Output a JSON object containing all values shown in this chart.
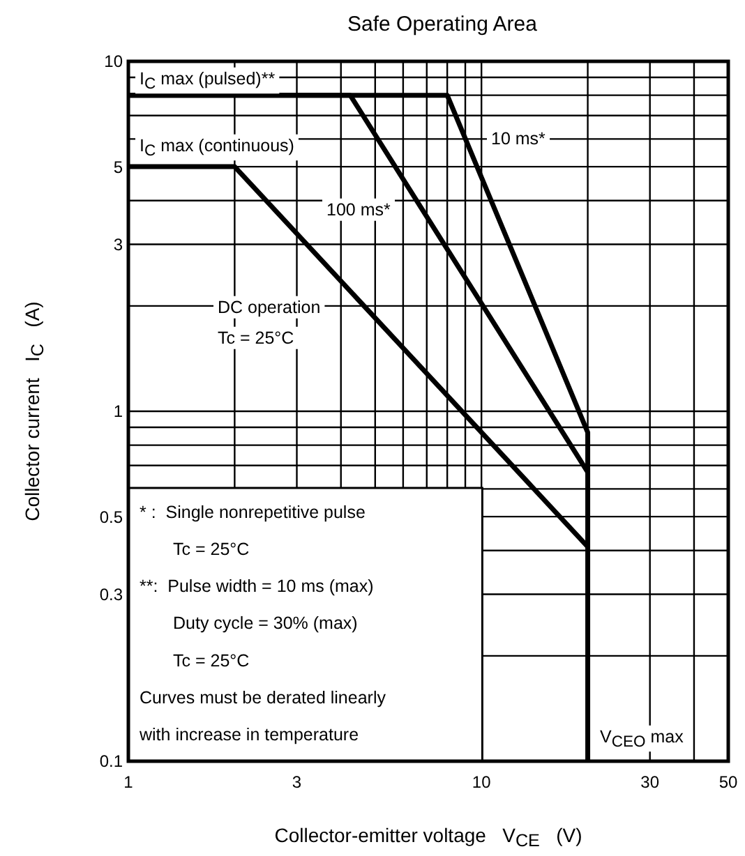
{
  "chart_data": {
    "type": "line",
    "title": "Safe Operating Area",
    "xlabel": "Collector-emitter voltage   V$_{CE}$   (V)",
    "ylabel": "Collector current   I$_{C}$   (A)",
    "log": "xy",
    "grid": true,
    "marker": "none",
    "line_style": "solid",
    "xlim": [
      1,
      50
    ],
    "ylim": [
      0.1,
      10
    ],
    "xticks": [
      1,
      {
        "value": 2,
        "label": null
      },
      3,
      {
        "value": 4,
        "label": null
      },
      {
        "value": 5,
        "label": null
      },
      {
        "value": 6,
        "label": null
      },
      {
        "value": 7,
        "label": null
      },
      {
        "value": 8,
        "label": null
      },
      {
        "value": 9,
        "label": null
      },
      10,
      {
        "value": 20,
        "label": null
      },
      30,
      {
        "value": 40,
        "label": null
      },
      50
    ],
    "yticks": [
      0.1,
      {
        "value": 0.2,
        "label": null
      },
      0.3,
      {
        "value": 0.4,
        "label": null
      },
      0.5,
      {
        "value": 0.6,
        "label": null
      },
      {
        "value": 0.7,
        "label": null
      },
      {
        "value": 0.8,
        "label": null
      },
      {
        "value": 0.9,
        "label": null
      },
      1,
      {
        "value": 2,
        "label": null
      },
      3,
      {
        "value": 4,
        "label": null
      },
      5,
      {
        "value": 6,
        "label": null
      },
      {
        "value": 7,
        "label": null
      },
      {
        "value": 8,
        "label": null
      },
      {
        "value": 9,
        "label": null
      },
      10
    ],
    "series": [
      {
        "color": "#000000",
        "x": [
          1,
          8,
          20,
          20
        ],
        "values": [
          8,
          8,
          0.87,
          0.1
        ]
      },
      {
        "color": "#000000",
        "x": [
          1,
          4.25,
          20
        ],
        "values": [
          8,
          8,
          0.67
        ]
      },
      {
        "color": "#000000",
        "x": [
          1,
          2,
          20
        ],
        "values": [
          5,
          5,
          0.41
        ]
      }
    ],
    "annotations": [
      "I$_{C}$ max (pulsed)**",
      "I$_{C}$ max (continuous)",
      "10 ms*",
      "100 ms*",
      "DC operation",
      "Tc = 25°C",
      "V$_{CEO}$ max",
      "* :  Single nonrepetitive pulse",
      "Tc = 25°C",
      "**:  Pulse width = 10 ms (max)",
      "Duty cycle = 30% (max)",
      "Tc = 25°C",
      "Curves must be derated linearly",
      "with increase in temperature"
    ]
  }
}
